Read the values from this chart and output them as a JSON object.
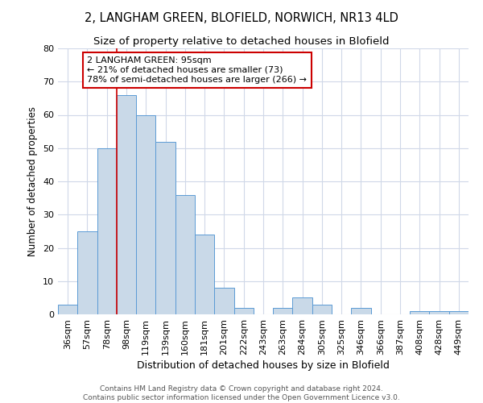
{
  "title1": "2, LANGHAM GREEN, BLOFIELD, NORWICH, NR13 4LD",
  "title2": "Size of property relative to detached houses in Blofield",
  "xlabel": "Distribution of detached houses by size in Blofield",
  "ylabel": "Number of detached properties",
  "categories": [
    "36sqm",
    "57sqm",
    "78sqm",
    "98sqm",
    "119sqm",
    "139sqm",
    "160sqm",
    "181sqm",
    "201sqm",
    "222sqm",
    "243sqm",
    "263sqm",
    "284sqm",
    "305sqm",
    "325sqm",
    "346sqm",
    "366sqm",
    "387sqm",
    "408sqm",
    "428sqm",
    "449sqm"
  ],
  "values": [
    3,
    25,
    50,
    66,
    60,
    52,
    36,
    24,
    8,
    2,
    0,
    2,
    5,
    3,
    0,
    2,
    0,
    0,
    1,
    1,
    1
  ],
  "bar_color": "#c9d9e8",
  "bar_edge_color": "#5b9bd5",
  "vline_x_index": 3,
  "vline_color": "#cc0000",
  "annotation_text": "2 LANGHAM GREEN: 95sqm\n← 21% of detached houses are smaller (73)\n78% of semi-detached houses are larger (266) →",
  "annotation_box_color": "#ffffff",
  "annotation_box_edge": "#cc0000",
  "ylim": [
    0,
    80
  ],
  "yticks": [
    0,
    10,
    20,
    30,
    40,
    50,
    60,
    70,
    80
  ],
  "grid_color": "#d0d8e8",
  "footnote": "Contains HM Land Registry data © Crown copyright and database right 2024.\nContains public sector information licensed under the Open Government Licence v3.0.",
  "title_fontsize": 10.5,
  "subtitle_fontsize": 9.5,
  "tick_fontsize": 8,
  "ylabel_fontsize": 8.5,
  "xlabel_fontsize": 9,
  "annotation_fontsize": 8,
  "footnote_fontsize": 6.5
}
